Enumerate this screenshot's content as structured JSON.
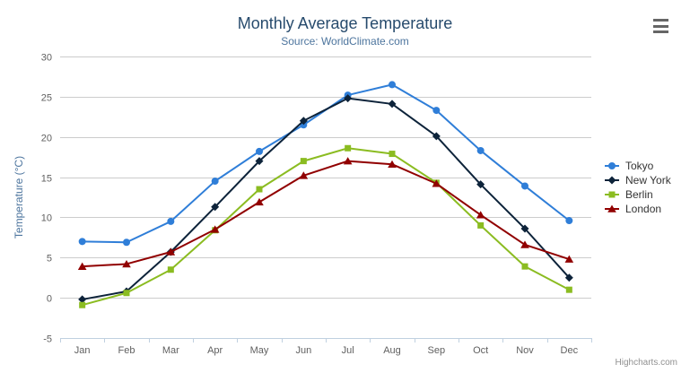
{
  "header": {
    "title": "Monthly Average Temperature",
    "subtitle": "Source: WorldClimate.com"
  },
  "chart_data": {
    "type": "line",
    "categories": [
      "Jan",
      "Feb",
      "Mar",
      "Apr",
      "May",
      "Jun",
      "Jul",
      "Aug",
      "Sep",
      "Oct",
      "Nov",
      "Dec"
    ],
    "series": [
      {
        "name": "Tokyo",
        "color": "#2f7ed8",
        "marker": "circle",
        "values": [
          7.0,
          6.9,
          9.5,
          14.5,
          18.2,
          21.5,
          25.2,
          26.5,
          23.3,
          18.3,
          13.9,
          9.6
        ]
      },
      {
        "name": "New York",
        "color": "#0d233a",
        "marker": "diamond",
        "values": [
          -0.2,
          0.8,
          5.7,
          11.3,
          17.0,
          22.0,
          24.8,
          24.1,
          20.1,
          14.1,
          8.6,
          2.5
        ]
      },
      {
        "name": "Berlin",
        "color": "#8bbc21",
        "marker": "square",
        "values": [
          -0.9,
          0.6,
          3.5,
          8.4,
          13.5,
          17.0,
          18.6,
          17.9,
          14.3,
          9.0,
          3.9,
          1.0
        ]
      },
      {
        "name": "London",
        "color": "#910000",
        "marker": "triangle",
        "values": [
          3.9,
          4.2,
          5.7,
          8.5,
          11.9,
          15.2,
          17.0,
          16.6,
          14.2,
          10.3,
          6.6,
          4.8
        ]
      }
    ],
    "title": "Monthly Average Temperature",
    "subtitle": "Source: WorldClimate.com",
    "xlabel": "",
    "ylabel": "Temperature (°C)",
    "ylim": [
      -5,
      30
    ],
    "ytick_step": 5,
    "grid": "horizontal",
    "legend_position": "right"
  },
  "colors": {
    "title": "#274b6d",
    "subtitle": "#4d759e",
    "axis_title": "#4d759e",
    "axis_label": "#606060",
    "grid": "#cccccc",
    "axis_line": "#c0d0e0",
    "tick": "#c0d0e0",
    "legend_text": "#333333",
    "credit": "#909090",
    "menu_icon": "#666666",
    "background": "#ffffff"
  },
  "credit": {
    "label": "Highcharts.com"
  }
}
